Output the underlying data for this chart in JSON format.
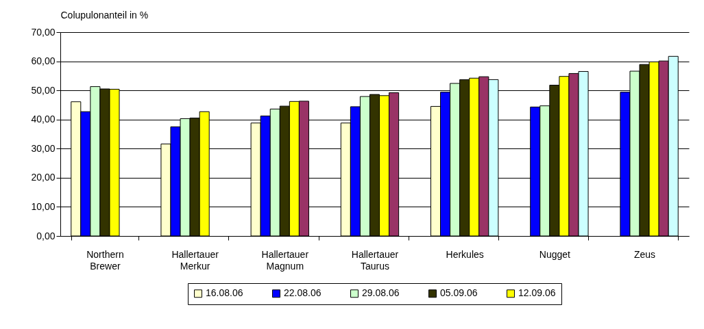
{
  "chart_data": {
    "type": "bar",
    "ylabel": "Colupulonanteil in %",
    "categories": [
      "Northern Brewer",
      "Hallertauer Merkur",
      "Hallertauer Magnum",
      "Hallertauer Taurus",
      "Herkules",
      "Nugget",
      "Zeus"
    ],
    "series": [
      {
        "name": "16.08.06",
        "color": "#ffffcc",
        "values": [
          46.1,
          31.6,
          38.8,
          38.8,
          44.5,
          null,
          null
        ]
      },
      {
        "name": "22.08.06",
        "color": "#0000ff",
        "values": [
          42.7,
          37.5,
          41.2,
          44.4,
          49.4,
          44.3,
          49.4
        ]
      },
      {
        "name": "29.08.06",
        "color": "#ccffcc",
        "values": [
          51.3,
          40.3,
          43.6,
          47.9,
          52.4,
          44.7,
          56.6
        ]
      },
      {
        "name": "05.09.06",
        "color": "#333300",
        "values": [
          50.5,
          40.5,
          44.6,
          48.6,
          53.7,
          51.8,
          58.9
        ]
      },
      {
        "name": "12.09.06",
        "color": "#ffff00",
        "values": [
          50.4,
          42.7,
          46.2,
          48.2,
          54.2,
          54.8,
          59.8
        ]
      },
      {
        "color": "#993366",
        "values": [
          null,
          null,
          46.3,
          49.2,
          54.7,
          55.8,
          60.1
        ]
      },
      {
        "color": "#ccffff",
        "values": [
          null,
          null,
          null,
          null,
          53.7,
          56.5,
          61.7
        ]
      }
    ],
    "ylim": [
      0,
      70
    ],
    "yticks": [
      {
        "value": 0,
        "label": "0,00"
      },
      {
        "value": 10,
        "label": "10,00"
      },
      {
        "value": 20,
        "label": "20,00"
      },
      {
        "value": 30,
        "label": "30,00"
      },
      {
        "value": 40,
        "label": "40,00"
      },
      {
        "value": 50,
        "label": "50,00"
      },
      {
        "value": 60,
        "label": "60,00"
      },
      {
        "value": 70,
        "label": "70,00"
      }
    ],
    "grid": "y",
    "legend": "bottom"
  }
}
